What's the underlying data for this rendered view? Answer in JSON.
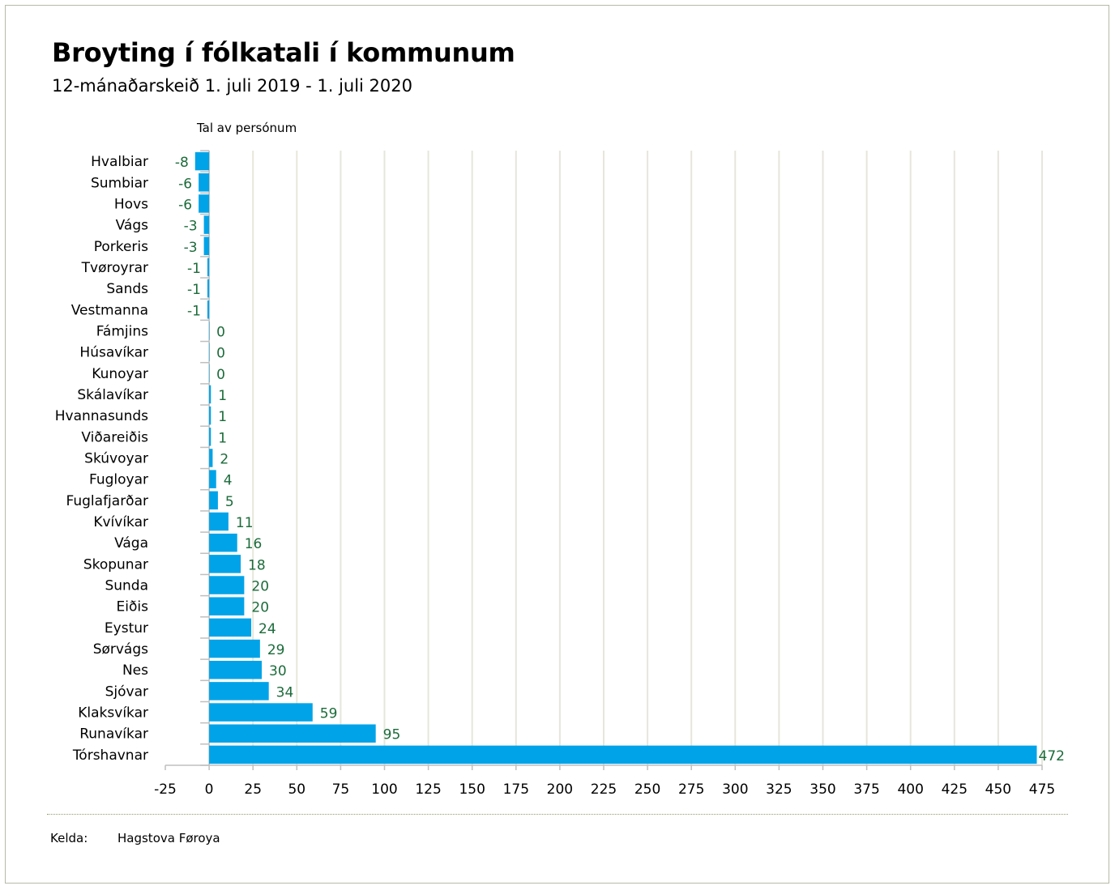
{
  "title": "Broyting í fólkatali í kommunum",
  "subtitle": "12-mánaðarskeið 1. juli 2019 - 1. juli 2020",
  "source": {
    "label": "Kelda:",
    "value": "Hagstova Føroya"
  },
  "chart_data": {
    "type": "bar",
    "orientation": "horizontal",
    "title": "Broyting í fólkatali í kommunum",
    "subtitle": "12-mánaðarskeið 1. juli 2019 - 1. juli 2020",
    "xlabel": "Tal av persónum",
    "ylabel": "",
    "xlim": [
      -25,
      475
    ],
    "x_ticks": [
      "-25",
      "0",
      "25",
      "50",
      "75",
      "100",
      "125",
      "150",
      "175",
      "200",
      "225",
      "250",
      "275",
      "300",
      "325",
      "350",
      "375",
      "400",
      "425",
      "450",
      "475"
    ],
    "grid": true,
    "categories": [
      "Hvalbiar",
      "Sumbiar",
      "Hovs",
      "Vágs",
      "Porkeris",
      "Tvøroyrar",
      "Sands",
      "Vestmanna",
      "Fámjins",
      "Húsavíkar",
      "Kunoyar",
      "Skálavíkar",
      "Hvannasunds",
      "Viðareiðis",
      "Skúvoyar",
      "Fugloyar",
      "Fuglafjarðar",
      "Kvívíkar",
      "Vága",
      "Skopunar",
      "Sunda",
      "Eiðis",
      "Eystur",
      "Sørvágs",
      "Nes",
      "Sjóvar",
      "Klaksvíkar",
      "Runavíkar",
      "Tórshavnar"
    ],
    "values": [
      -8,
      -6,
      -6,
      -3,
      -3,
      -1,
      -1,
      -1,
      0,
      0,
      0,
      1,
      1,
      1,
      2,
      4,
      5,
      11,
      16,
      18,
      20,
      20,
      24,
      29,
      30,
      34,
      59,
      95,
      472
    ],
    "colors": {
      "bar": "#00a3e8",
      "label": "#1b6b3a",
      "grid": "#e6e6dc",
      "axis": "#bfbfbf"
    }
  }
}
